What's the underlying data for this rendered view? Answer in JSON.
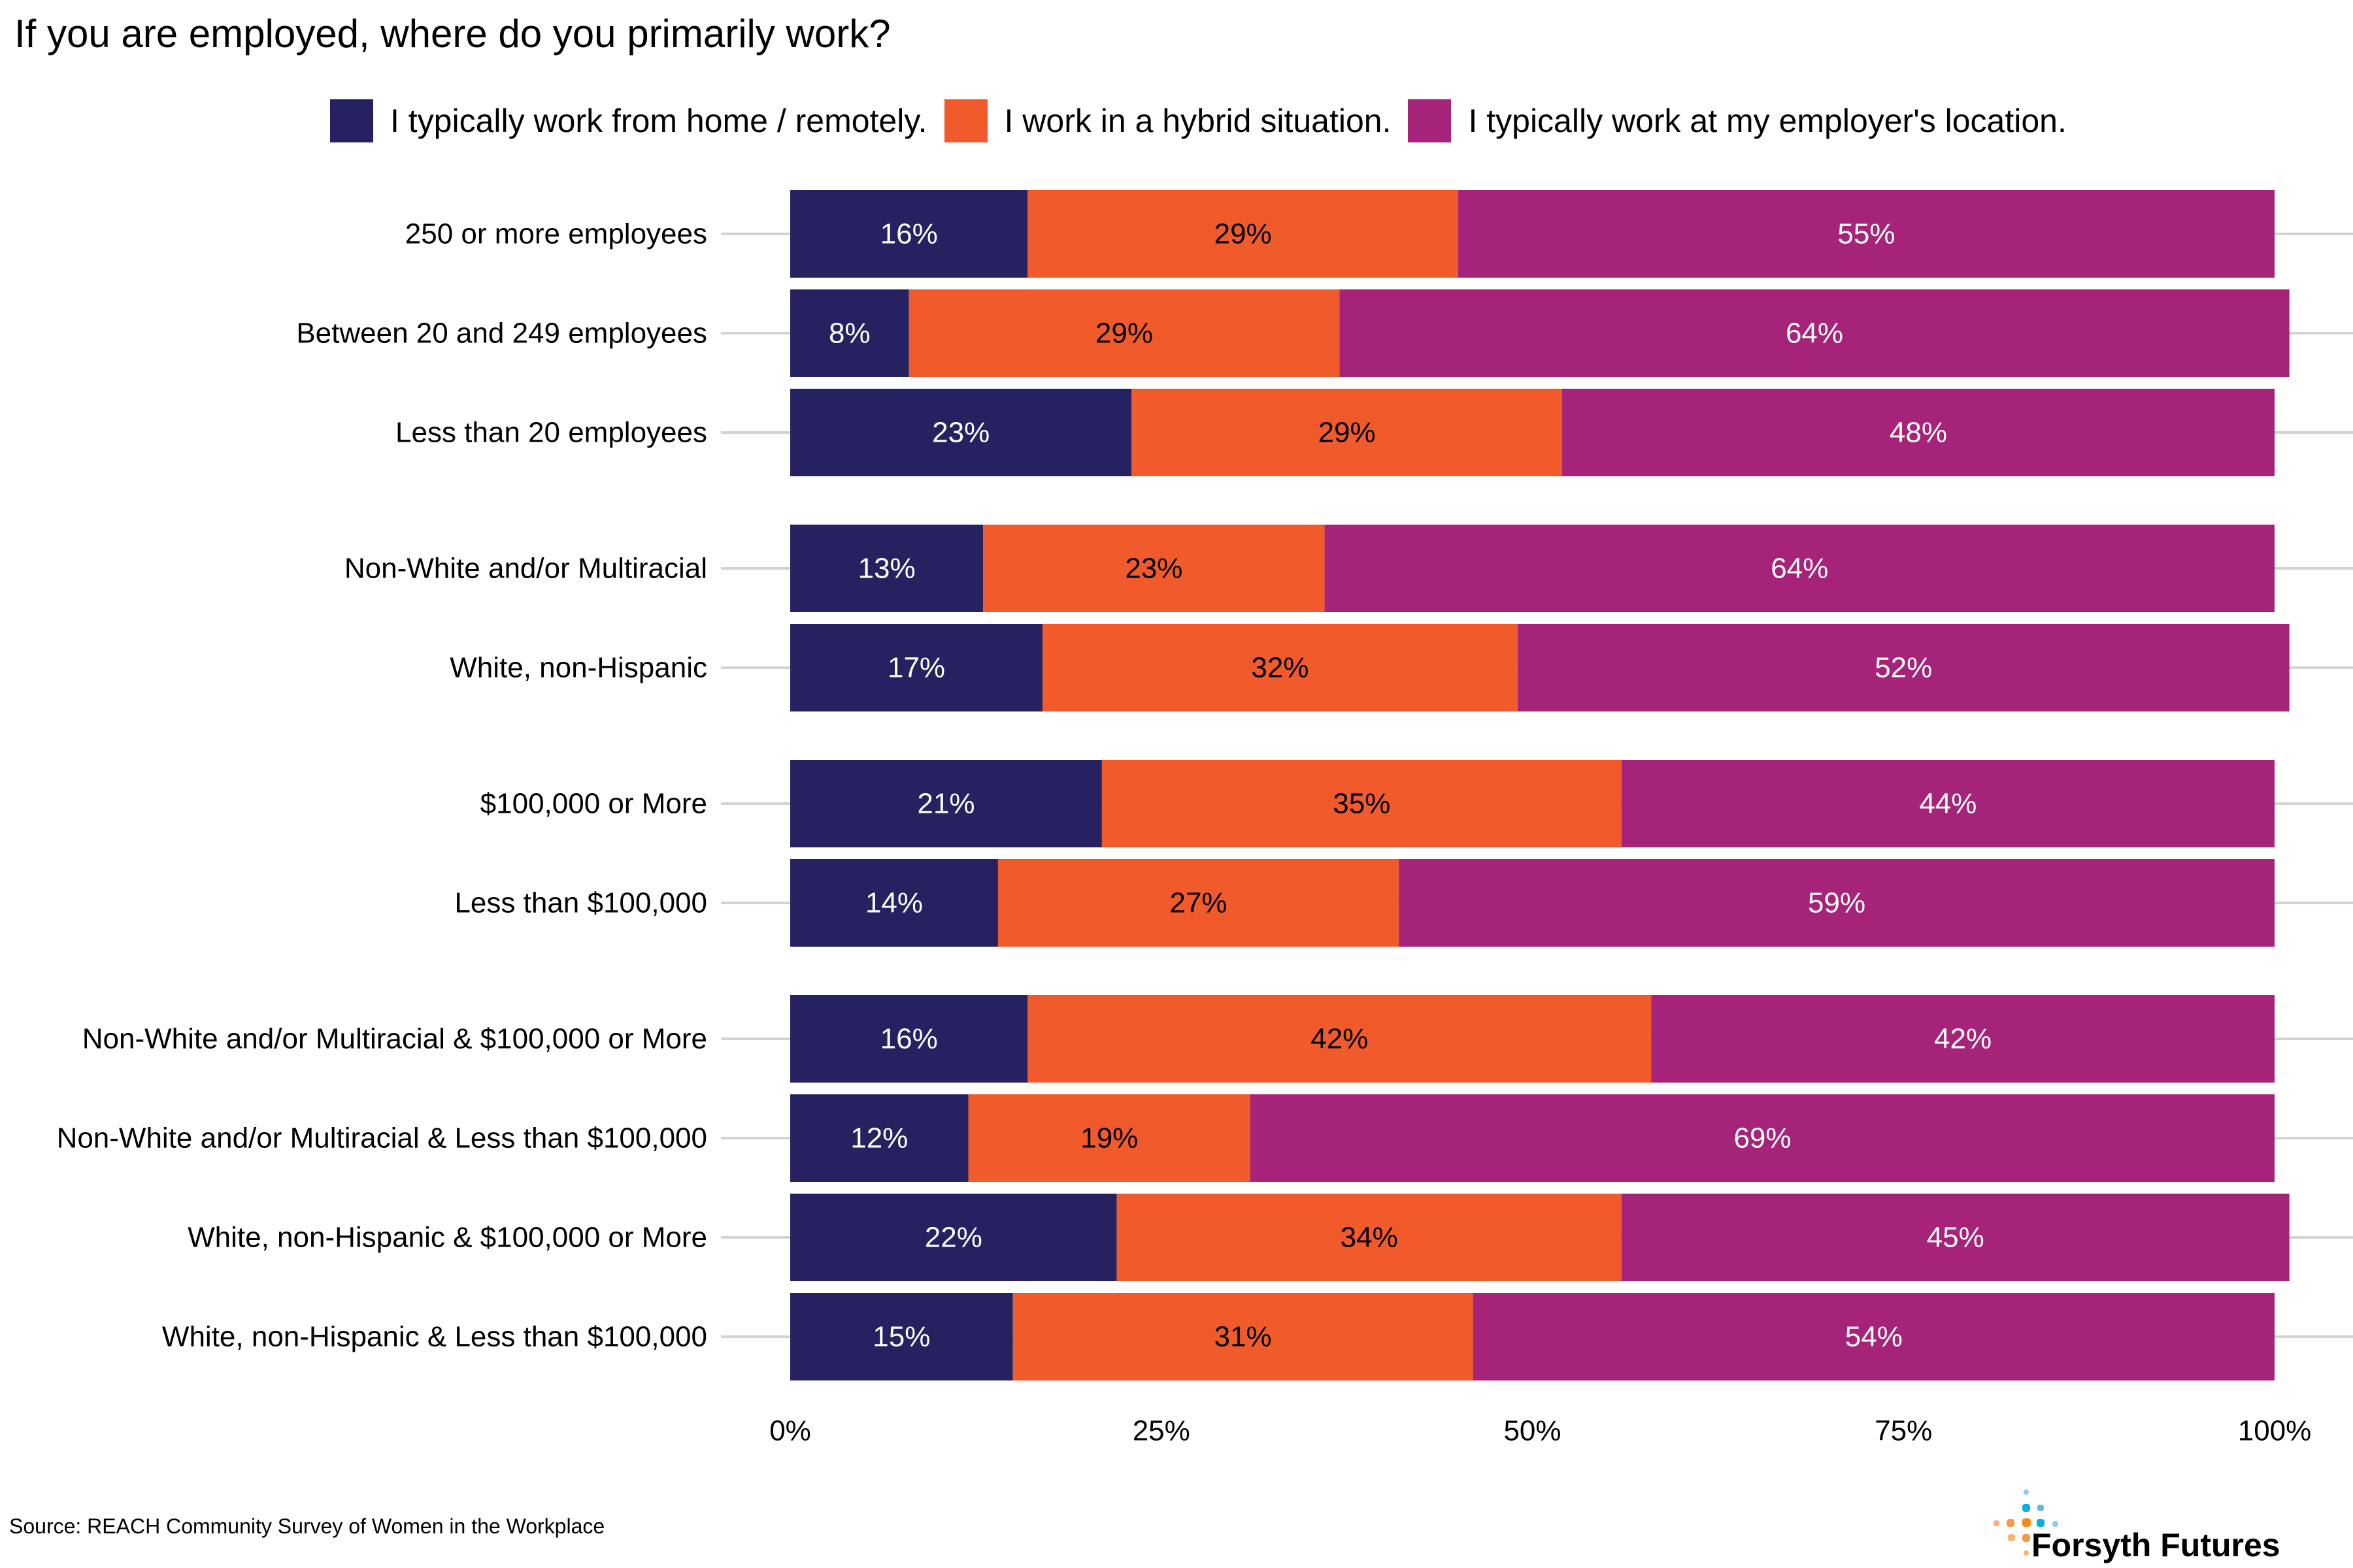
{
  "title": "If you are employed, where do you primarily work?",
  "legend": [
    {
      "label": "I typically work from home / remotely.",
      "color": "#262262"
    },
    {
      "label": "I work in a hybrid situation.",
      "color": "#F15A2B"
    },
    {
      "label": "I typically work at my employer's location.",
      "color": "#A6237A"
    }
  ],
  "source": "Source: REACH Community Survey of Women in the Workplace",
  "logo": {
    "text": "Forsyth Futures",
    "icon": "forsyth-futures-dot-cross-icon"
  },
  "chart_data": {
    "type": "bar",
    "orientation": "horizontal",
    "stacked": true,
    "title": "If you are employed, where do you primarily work?",
    "xlabel": "",
    "ylabel": "",
    "xlim": [
      0,
      100
    ],
    "x_ticks": [
      "0%",
      "25%",
      "50%",
      "75%",
      "100%"
    ],
    "x_tick_values": [
      0,
      25,
      50,
      75,
      100
    ],
    "grid": "horizontal lines at each category",
    "legend_position": "top",
    "groups": [
      [
        "250 or more employees",
        "Between 20 and 249 employees",
        "Less than 20 employees"
      ],
      [
        "Non-White and/or Multiracial",
        "White, non-Hispanic"
      ],
      [
        "$100,000 or More",
        "Less than $100,000"
      ],
      [
        "Non-White and/or Multiracial & $100,000 or More",
        "Non-White and/or Multiracial & Less than $100,000",
        "White, non-Hispanic & $100,000 or More",
        "White, non-Hispanic & Less than $100,000"
      ]
    ],
    "categories": [
      "250 or more employees",
      "Between 20 and 249 employees",
      "Less than 20 employees",
      "Non-White and/or Multiracial",
      "White, non-Hispanic",
      "$100,000 or More",
      "Less than $100,000",
      "Non-White and/or Multiracial & $100,000 or More",
      "Non-White and/or Multiracial & Less than $100,000",
      "White, non-Hispanic & $100,000 or More",
      "White, non-Hispanic & Less than $100,000"
    ],
    "series": [
      {
        "name": "I typically work from home / remotely.",
        "color": "#262262",
        "label_color": "#ffffff",
        "values": [
          16,
          8,
          23,
          13,
          17,
          21,
          14,
          16,
          12,
          22,
          15
        ]
      },
      {
        "name": "I work in a hybrid situation.",
        "color": "#F15A2B",
        "label_color": "#000000",
        "values": [
          29,
          29,
          29,
          23,
          32,
          35,
          27,
          42,
          19,
          34,
          31
        ]
      },
      {
        "name": "I typically work at my employer's location.",
        "color": "#A6237A",
        "label_color": "#ffffff",
        "values": [
          55,
          64,
          48,
          64,
          52,
          44,
          59,
          42,
          69,
          45,
          54
        ]
      }
    ],
    "value_suffix": "%"
  }
}
